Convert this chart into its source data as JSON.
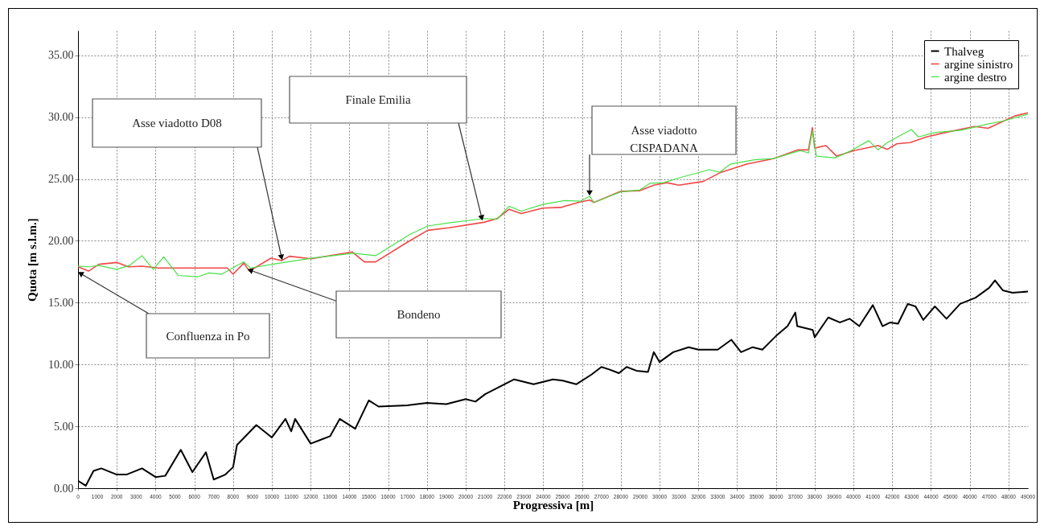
{
  "chart_data": {
    "type": "line",
    "xlabel": "Progressiva [m]",
    "ylabel": "Quota [m s.l.m.]",
    "xlim": [
      0,
      49000
    ],
    "xticks": [
      0,
      1000,
      2000,
      3000,
      4000,
      5000,
      6000,
      7000,
      8000,
      9000,
      10000,
      11000,
      12000,
      13000,
      14000,
      15000,
      16000,
      17000,
      18000,
      19000,
      20000,
      21000,
      22000,
      23000,
      24000,
      25000,
      26000,
      27000,
      28000,
      29000,
      30000,
      31000,
      32000,
      33000,
      34000,
      35000,
      36000,
      37000,
      38000,
      39000,
      40000,
      41000,
      42000,
      43000,
      44000,
      45000,
      46000,
      47000,
      48000,
      49000
    ],
    "ylim": [
      0,
      37
    ],
    "yticks": [
      {
        "value": 0,
        "label": "0.00"
      },
      {
        "value": 5,
        "label": "5.00"
      },
      {
        "value": 10,
        "label": "10.00"
      },
      {
        "value": 15,
        "label": "15.00"
      },
      {
        "value": 20,
        "label": "20.00"
      },
      {
        "value": 25,
        "label": "25.00"
      },
      {
        "value": 30,
        "label": "30.00"
      },
      {
        "value": 35,
        "label": "35.00"
      }
    ],
    "grid": true,
    "legend": "top right",
    "line_style": "solid",
    "series": [
      {
        "name": "Thalveg",
        "color": "#000000",
        "x": [
          0,
          400,
          800,
          1200,
          2000,
          2500,
          3300,
          4000,
          4500,
          5300,
          5900,
          6600,
          7000,
          7600,
          8000,
          8200,
          9200,
          10000,
          10700,
          11000,
          11200,
          12000,
          12500,
          13000,
          13500,
          14300,
          15000,
          15500,
          17000,
          18000,
          19000,
          20000,
          20500,
          21000,
          22500,
          23500,
          24500,
          25000,
          25700,
          26500,
          27000,
          27400,
          27900,
          28300,
          28800,
          29400,
          29700,
          30000,
          30700,
          31500,
          32000,
          33000,
          33700,
          34200,
          34800,
          35300,
          36000,
          36600,
          37000,
          37100,
          37900,
          38000,
          38700,
          39300,
          39800,
          40300,
          41000,
          41500,
          41900,
          42300,
          42800,
          43200,
          43600,
          44200,
          44800,
          45500,
          46300,
          47000,
          47300,
          47700,
          48200,
          49000
        ],
        "values": [
          0.6,
          0.2,
          1.4,
          1.6,
          1.1,
          1.1,
          1.6,
          0.9,
          1.0,
          3.1,
          1.3,
          2.9,
          0.7,
          1.1,
          1.7,
          3.5,
          5.1,
          4.1,
          5.6,
          4.6,
          5.6,
          3.6,
          3.9,
          4.2,
          5.6,
          4.8,
          7.1,
          6.6,
          6.7,
          6.9,
          6.8,
          7.2,
          7.0,
          7.6,
          8.8,
          8.4,
          8.8,
          8.7,
          8.4,
          9.2,
          9.8,
          9.6,
          9.3,
          9.8,
          9.5,
          9.4,
          11.0,
          10.2,
          11.0,
          11.4,
          11.2,
          11.2,
          12.0,
          11.0,
          11.4,
          11.2,
          12.3,
          13.1,
          14.2,
          13.1,
          12.8,
          12.2,
          13.8,
          13.4,
          13.7,
          13.1,
          14.8,
          13.1,
          13.4,
          13.3,
          14.9,
          14.7,
          13.6,
          14.7,
          13.7,
          14.9,
          15.4,
          16.2,
          16.8,
          16.0,
          15.8,
          15.9
        ]
      },
      {
        "name": "argine sinistro",
        "color": "#f04848",
        "x": [
          0,
          540,
          1080,
          2000,
          2600,
          3300,
          4150,
          5930,
          7700,
          8000,
          8550,
          8840,
          9950,
          10500,
          10900,
          12030,
          14150,
          14770,
          15350,
          17000,
          18040,
          19130,
          20940,
          21620,
          22240,
          22860,
          23980,
          24900,
          25920,
          26400,
          26610,
          27990,
          28960,
          29700,
          30380,
          30990,
          32250,
          33110,
          34500,
          35880,
          37120,
          37680,
          37880,
          38000,
          38580,
          39130,
          40030,
          41270,
          41750,
          42240,
          42930,
          43760,
          44860,
          46250,
          46940,
          47770,
          48330,
          49000
        ],
        "values": [
          17.9,
          17.55,
          18.1,
          18.25,
          17.9,
          17.95,
          17.8,
          17.8,
          17.8,
          17.3,
          18.2,
          17.55,
          18.6,
          18.4,
          18.75,
          18.55,
          19.1,
          18.3,
          18.3,
          19.9,
          20.85,
          21.05,
          21.5,
          21.8,
          22.55,
          22.2,
          22.65,
          22.7,
          23.15,
          23.3,
          23.1,
          24.0,
          24.05,
          24.5,
          24.7,
          24.5,
          24.8,
          25.5,
          26.2,
          26.65,
          27.35,
          27.35,
          29.15,
          27.5,
          27.7,
          26.85,
          27.3,
          27.7,
          27.4,
          27.85,
          27.95,
          28.4,
          28.8,
          29.25,
          29.1,
          29.7,
          30.1,
          30.35
        ]
      },
      {
        "name": "argine destro",
        "color": "#48e048",
        "x": [
          0,
          540,
          1080,
          2000,
          2650,
          3300,
          3880,
          4420,
          5170,
          6200,
          6750,
          7400,
          8550,
          8900,
          10210,
          12100,
          14200,
          15350,
          17100,
          18040,
          19130,
          20940,
          21620,
          22240,
          22860,
          23980,
          25090,
          25920,
          26400,
          26610,
          27580,
          27990,
          28960,
          29500,
          30200,
          31040,
          32560,
          33110,
          33650,
          34900,
          35880,
          37260,
          37680,
          37880,
          38090,
          39050,
          39880,
          40790,
          41270,
          41750,
          42990,
          43350,
          44180,
          45560,
          46940,
          47770,
          49000
        ],
        "values": [
          17.95,
          17.9,
          18.0,
          17.7,
          18.0,
          18.8,
          17.7,
          18.7,
          17.2,
          17.1,
          17.4,
          17.3,
          18.3,
          17.8,
          18.15,
          18.6,
          19.0,
          18.8,
          20.5,
          21.2,
          21.45,
          21.8,
          21.75,
          22.8,
          22.4,
          22.95,
          23.25,
          23.2,
          23.6,
          23.1,
          23.7,
          23.95,
          24.1,
          24.65,
          24.7,
          25.1,
          25.75,
          25.55,
          26.2,
          26.55,
          26.65,
          27.3,
          27.1,
          28.9,
          26.85,
          26.7,
          27.3,
          28.1,
          27.35,
          27.95,
          29.0,
          28.4,
          28.75,
          28.95,
          29.45,
          29.7,
          30.25
        ]
      }
    ],
    "annotations": [
      "Asse viadotto D08",
      "Finale Emilia",
      "Asse viadotto\nCISPADANA",
      "Confluenza in Po",
      "Bondeno"
    ]
  }
}
